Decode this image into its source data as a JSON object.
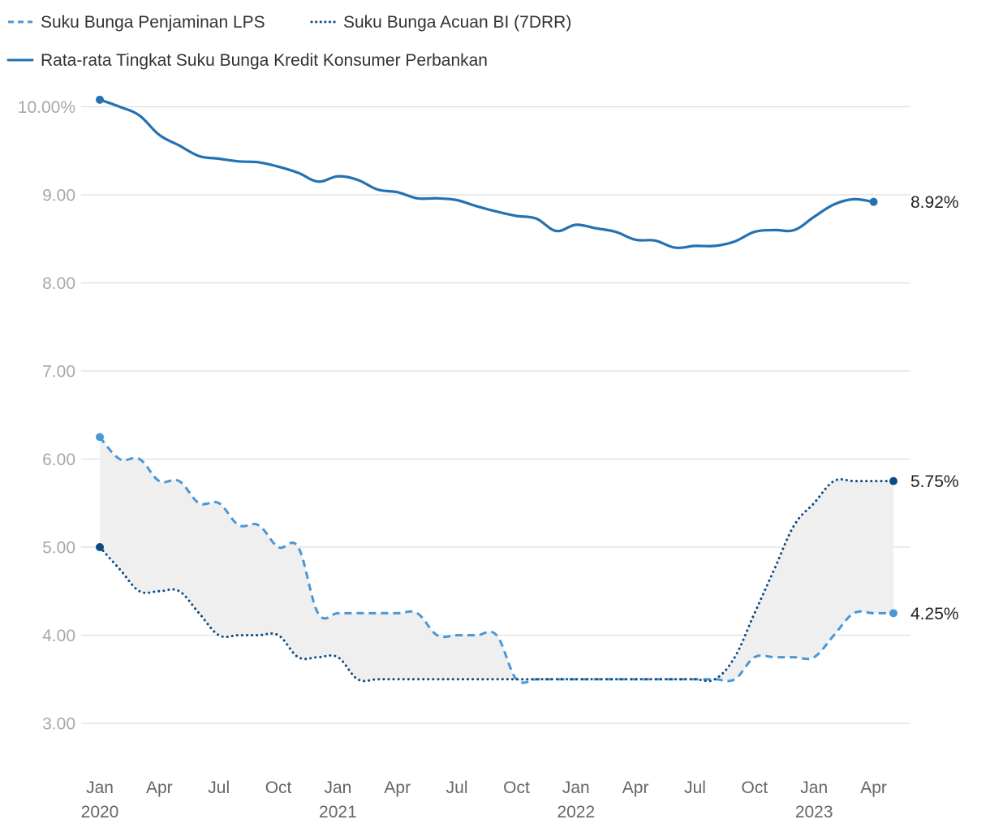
{
  "chart_data": {
    "type": "line",
    "title": "",
    "xlabel": "",
    "ylabel": "",
    "ylim": [
      3.0,
      10.0
    ],
    "y_ticks": [
      {
        "value": 10,
        "label": "10.00%"
      },
      {
        "value": 9,
        "label": "9.00"
      },
      {
        "value": 8,
        "label": "8.00"
      },
      {
        "value": 7,
        "label": "7.00"
      },
      {
        "value": 6,
        "label": "6.00"
      },
      {
        "value": 5,
        "label": "5.00"
      },
      {
        "value": 4,
        "label": "4.00"
      },
      {
        "value": 3,
        "label": "3.00"
      }
    ],
    "x_ticks": [
      {
        "month": 0,
        "label": "Jan",
        "year": "2020"
      },
      {
        "month": 3,
        "label": "Apr",
        "year": ""
      },
      {
        "month": 6,
        "label": "Jul",
        "year": ""
      },
      {
        "month": 9,
        "label": "Oct",
        "year": ""
      },
      {
        "month": 12,
        "label": "Jan",
        "year": "2021"
      },
      {
        "month": 15,
        "label": "Apr",
        "year": ""
      },
      {
        "month": 18,
        "label": "Jul",
        "year": ""
      },
      {
        "month": 21,
        "label": "Oct",
        "year": ""
      },
      {
        "month": 24,
        "label": "Jan",
        "year": "2022"
      },
      {
        "month": 27,
        "label": "Apr",
        "year": ""
      },
      {
        "month": 30,
        "label": "Jul",
        "year": ""
      },
      {
        "month": 33,
        "label": "Oct",
        "year": ""
      },
      {
        "month": 36,
        "label": "Jan",
        "year": "2023"
      },
      {
        "month": 39,
        "label": "Apr",
        "year": ""
      }
    ],
    "x_range_months": [
      0,
      40
    ],
    "legend": [
      {
        "name": "Suku Bunga Penjaminan LPS",
        "style": "dashed",
        "color": "#4a97d6"
      },
      {
        "name": "Suku Bunga Acuan BI (7DRR)",
        "style": "dotted",
        "color": "#0b4a84"
      },
      {
        "name": "Rata-rata Tingkat Suku Bunga Kredit Konsumer Perbankan",
        "style": "solid",
        "color": "#2471b3"
      }
    ],
    "shaded_band": {
      "between": [
        "Suku Bunga Penjaminan LPS",
        "Suku Bunga Acuan BI (7DRR)"
      ],
      "color": "#efefef"
    },
    "series": [
      {
        "name": "Rata-rata Tingkat Suku Bunga Kredit Konsumer Perbankan",
        "style": "solid",
        "color": "#2471b3",
        "end_label": "8.92%",
        "points": [
          [
            0,
            10.08
          ],
          [
            1,
            10.0
          ],
          [
            2,
            9.9
          ],
          [
            3,
            9.68
          ],
          [
            4,
            9.56
          ],
          [
            5,
            9.44
          ],
          [
            6,
            9.41
          ],
          [
            7,
            9.38
          ],
          [
            8,
            9.37
          ],
          [
            9,
            9.32
          ],
          [
            10,
            9.25
          ],
          [
            11,
            9.15
          ],
          [
            12,
            9.21
          ],
          [
            13,
            9.17
          ],
          [
            14,
            9.06
          ],
          [
            15,
            9.03
          ],
          [
            16,
            8.96
          ],
          [
            17,
            8.96
          ],
          [
            18,
            8.94
          ],
          [
            19,
            8.87
          ],
          [
            20,
            8.81
          ],
          [
            21,
            8.76
          ],
          [
            22,
            8.73
          ],
          [
            23,
            8.59
          ],
          [
            24,
            8.66
          ],
          [
            25,
            8.62
          ],
          [
            26,
            8.58
          ],
          [
            27,
            8.49
          ],
          [
            28,
            8.48
          ],
          [
            29,
            8.4
          ],
          [
            30,
            8.42
          ],
          [
            31,
            8.42
          ],
          [
            32,
            8.47
          ],
          [
            33,
            8.58
          ],
          [
            34,
            8.6
          ],
          [
            35,
            8.6
          ],
          [
            36,
            8.75
          ],
          [
            37,
            8.89
          ],
          [
            38,
            8.95
          ],
          [
            39,
            8.92
          ]
        ]
      },
      {
        "name": "Suku Bunga Penjaminan LPS",
        "style": "dashed",
        "color": "#4a97d6",
        "end_label": "4.25%",
        "points": [
          [
            0,
            6.25
          ],
          [
            1,
            6.0
          ],
          [
            2,
            6.0
          ],
          [
            3,
            5.75
          ],
          [
            4,
            5.75
          ],
          [
            5,
            5.5
          ],
          [
            6,
            5.5
          ],
          [
            7,
            5.25
          ],
          [
            8,
            5.25
          ],
          [
            9,
            5.0
          ],
          [
            10,
            5.0
          ],
          [
            11,
            4.25
          ],
          [
            12,
            4.25
          ],
          [
            13,
            4.25
          ],
          [
            14,
            4.25
          ],
          [
            15,
            4.25
          ],
          [
            16,
            4.25
          ],
          [
            17,
            4.0
          ],
          [
            18,
            4.0
          ],
          [
            19,
            4.0
          ],
          [
            20,
            4.0
          ],
          [
            21,
            3.5
          ],
          [
            22,
            3.5
          ],
          [
            23,
            3.5
          ],
          [
            24,
            3.5
          ],
          [
            25,
            3.5
          ],
          [
            26,
            3.5
          ],
          [
            27,
            3.5
          ],
          [
            28,
            3.5
          ],
          [
            29,
            3.5
          ],
          [
            30,
            3.5
          ],
          [
            31,
            3.5
          ],
          [
            32,
            3.5
          ],
          [
            33,
            3.75
          ],
          [
            34,
            3.75
          ],
          [
            35,
            3.75
          ],
          [
            36,
            3.75
          ],
          [
            37,
            4.0
          ],
          [
            38,
            4.25
          ],
          [
            39,
            4.25
          ],
          [
            40,
            4.25
          ]
        ]
      },
      {
        "name": "Suku Bunga Acuan BI (7DRR)",
        "style": "dotted",
        "color": "#0b4a84",
        "end_label": "5.75%",
        "points": [
          [
            0,
            5.0
          ],
          [
            1,
            4.75
          ],
          [
            2,
            4.5
          ],
          [
            3,
            4.5
          ],
          [
            4,
            4.5
          ],
          [
            5,
            4.25
          ],
          [
            6,
            4.0
          ],
          [
            7,
            4.0
          ],
          [
            8,
            4.0
          ],
          [
            9,
            4.0
          ],
          [
            10,
            3.75
          ],
          [
            11,
            3.75
          ],
          [
            12,
            3.75
          ],
          [
            13,
            3.5
          ],
          [
            14,
            3.5
          ],
          [
            15,
            3.5
          ],
          [
            16,
            3.5
          ],
          [
            17,
            3.5
          ],
          [
            18,
            3.5
          ],
          [
            19,
            3.5
          ],
          [
            20,
            3.5
          ],
          [
            21,
            3.5
          ],
          [
            22,
            3.5
          ],
          [
            23,
            3.5
          ],
          [
            24,
            3.5
          ],
          [
            25,
            3.5
          ],
          [
            26,
            3.5
          ],
          [
            27,
            3.5
          ],
          [
            28,
            3.5
          ],
          [
            29,
            3.5
          ],
          [
            30,
            3.5
          ],
          [
            31,
            3.5
          ],
          [
            32,
            3.75
          ],
          [
            33,
            4.25
          ],
          [
            34,
            4.75
          ],
          [
            35,
            5.25
          ],
          [
            36,
            5.5
          ],
          [
            37,
            5.75
          ],
          [
            38,
            5.75
          ],
          [
            39,
            5.75
          ],
          [
            40,
            5.75
          ]
        ]
      }
    ]
  }
}
